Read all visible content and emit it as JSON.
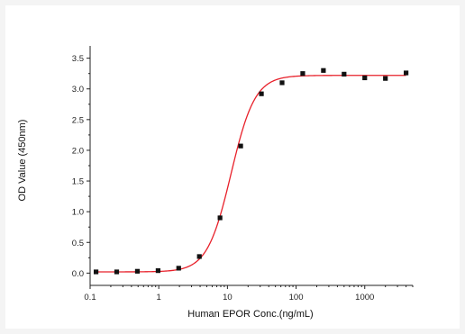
{
  "chart_data": {
    "type": "scatter",
    "title": "",
    "xlabel": "Human EPOR Conc.(ng/mL)",
    "ylabel": "OD Value (450nm)",
    "xscale": "log",
    "xlim": [
      0.1,
      5000
    ],
    "ylim": [
      -0.2,
      3.7
    ],
    "grid": false,
    "legend": "none",
    "x_ticks": [
      {
        "value": 0.1,
        "label": "0.1"
      },
      {
        "value": 1,
        "label": "1"
      },
      {
        "value": 10,
        "label": "10"
      },
      {
        "value": 100,
        "label": "100"
      },
      {
        "value": 1000,
        "label": "1000"
      }
    ],
    "y_ticks": [
      {
        "value": 0.0,
        "label": "0.0"
      },
      {
        "value": 0.5,
        "label": "0.5"
      },
      {
        "value": 1.0,
        "label": "1.0"
      },
      {
        "value": 1.5,
        "label": "1.5"
      },
      {
        "value": 2.0,
        "label": "2.0"
      },
      {
        "value": 2.5,
        "label": "2.5"
      },
      {
        "value": 3.0,
        "label": "3.0"
      },
      {
        "value": 3.5,
        "label": "3.5"
      }
    ],
    "series": [
      {
        "marker": "square",
        "color": "#111111",
        "points": [
          {
            "x": 0.122,
            "y": 0.02
          },
          {
            "x": 0.244,
            "y": 0.02
          },
          {
            "x": 0.488,
            "y": 0.03
          },
          {
            "x": 0.977,
            "y": 0.04
          },
          {
            "x": 1.95,
            "y": 0.08
          },
          {
            "x": 3.9,
            "y": 0.27
          },
          {
            "x": 7.8,
            "y": 0.9
          },
          {
            "x": 15.6,
            "y": 2.07
          },
          {
            "x": 31.25,
            "y": 2.92
          },
          {
            "x": 62.5,
            "y": 3.1
          },
          {
            "x": 125,
            "y": 3.25
          },
          {
            "x": 250,
            "y": 3.3
          },
          {
            "x": 500,
            "y": 3.24
          },
          {
            "x": 1000,
            "y": 3.18
          },
          {
            "x": 2000,
            "y": 3.17
          },
          {
            "x": 4000,
            "y": 3.26
          }
        ]
      }
    ],
    "fit": {
      "type": "4PL",
      "color": "#e8202a",
      "bottom": 0.02,
      "top": 3.22,
      "ec50": 11.3,
      "hill": 2.5
    }
  }
}
